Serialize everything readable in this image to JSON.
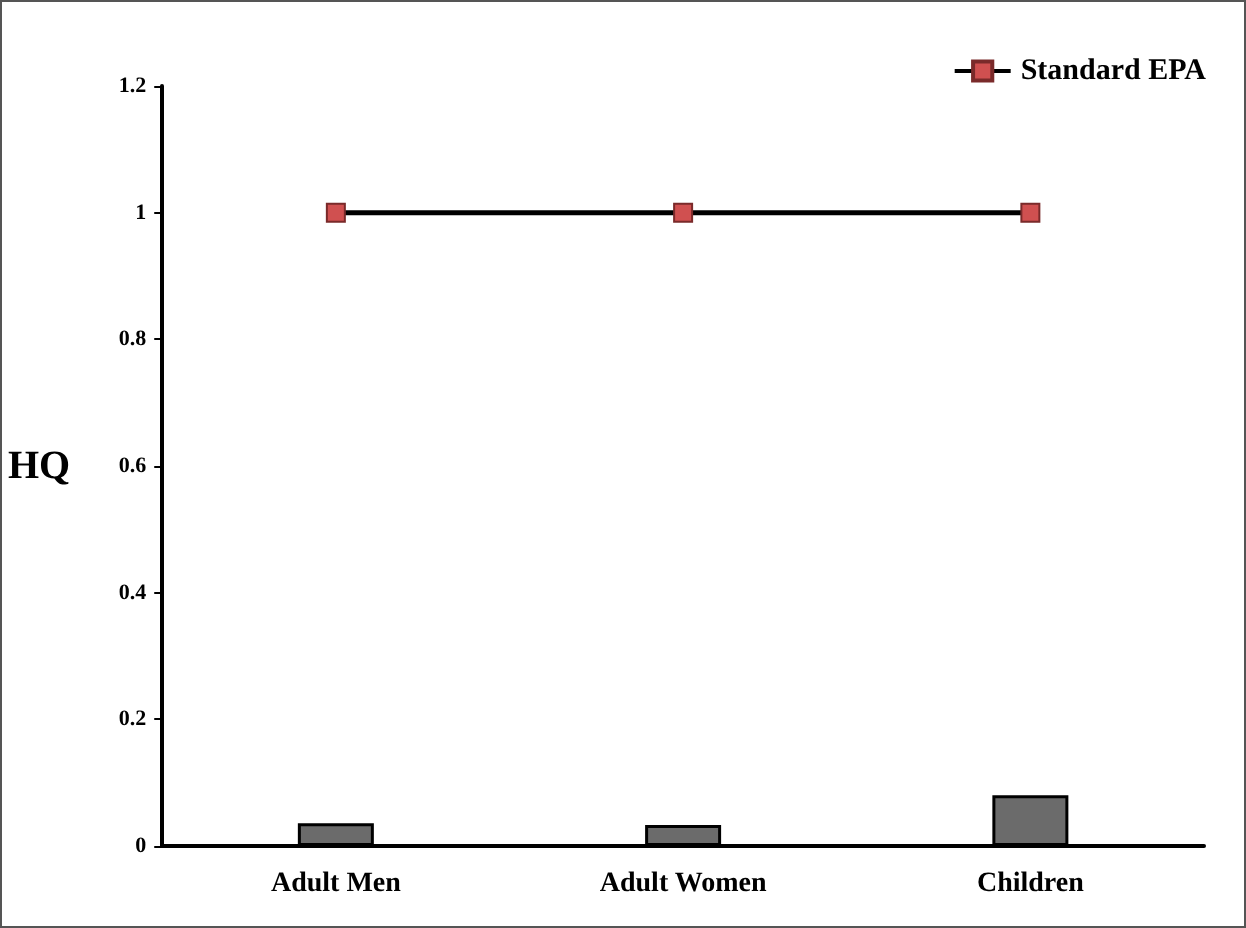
{
  "chart_data": {
    "type": "bar",
    "ylabel": "HQ",
    "categories": [
      "Adult Men",
      "Adult Women",
      "Children"
    ],
    "series": [
      {
        "color": "#6b6b6b",
        "values": [
          0.036,
          0.033,
          0.08
        ]
      },
      {
        "type": "line",
        "name": "Standard EPA",
        "color": "#d05050",
        "values": [
          1,
          1,
          1
        ],
        "marker": "square",
        "line_style": "solid"
      }
    ],
    "ylim": [
      0,
      1.2
    ],
    "yticks": [
      0,
      0.2,
      0.4,
      0.6,
      0.8,
      1,
      1.2
    ],
    "grid": false,
    "legend": "top right"
  }
}
